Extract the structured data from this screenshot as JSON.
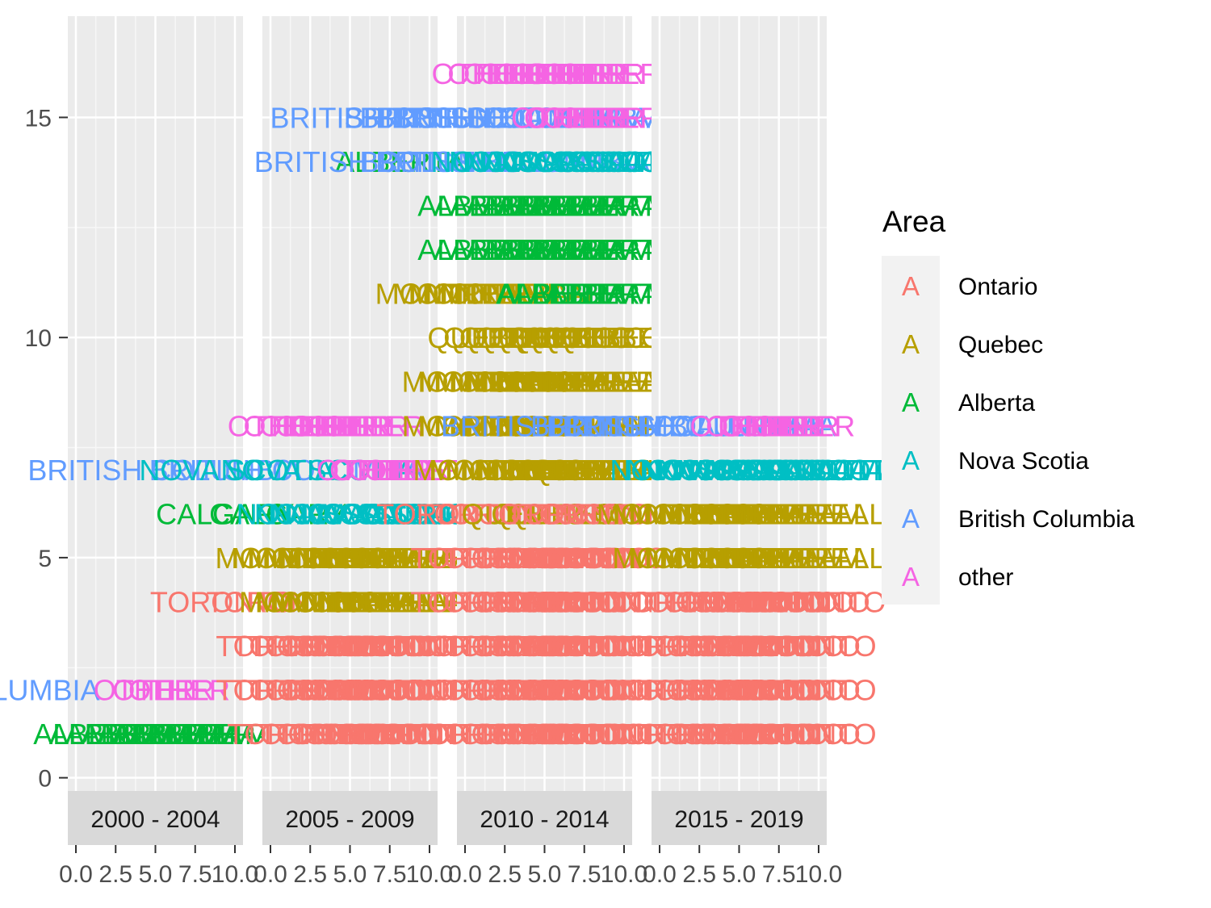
{
  "chart_data": {
    "type": "text-stack",
    "facets": [
      {
        "label": "2000 - 2004",
        "stacks": [
          {
            "y": 1,
            "series": "Alberta",
            "text": "ALBERTA",
            "count": 10,
            "x_end": 10.4
          },
          {
            "y": 2,
            "series": "British Columbia",
            "text": "BRITISH COLUMBIA",
            "count": 1,
            "x_end": 1.5
          },
          {
            "y": 2,
            "series": "other",
            "text": "OTHER",
            "count": 3,
            "x_end": 7.5
          }
        ]
      },
      {
        "label": "2005 - 2009",
        "stacks": [
          {
            "y": 1,
            "series": "Ontario",
            "text": "TORONTO",
            "count": 10,
            "x_end": 10.8
          },
          {
            "y": 2,
            "series": "Ontario",
            "text": "TORONTO",
            "count": 10,
            "x_end": 10.1
          },
          {
            "y": 3,
            "series": "Ontario",
            "text": "TORONTO",
            "count": 10,
            "x_end": 10.1
          },
          {
            "y": 4,
            "series": "Ontario",
            "text": "TORONTO",
            "count": 2,
            "x_end": 1.5
          },
          {
            "y": 4,
            "series": "Quebec",
            "text": "MONTREAL",
            "count": 8,
            "x_end": 10.1
          },
          {
            "y": 5,
            "series": "Quebec",
            "text": "MONTREAL",
            "count": 10,
            "x_end": 10.6
          },
          {
            "y": 6,
            "series": "Alberta",
            "text": "CALGARY",
            "count": 2,
            "x_end": 1.5
          },
          {
            "y": 6,
            "series": "Nova Scotia",
            "text": "NOVA SCOTIA",
            "count": 6,
            "x_end": 10.1
          },
          {
            "y": 7,
            "series": "British Columbia",
            "text": "BRITISH COLUMBIA",
            "count": 2,
            "x_end": 2.0
          },
          {
            "y": 7,
            "series": "Nova Scotia",
            "text": "NOVA SCOTIA",
            "count": 2,
            "x_end": 4.0
          },
          {
            "y": 7,
            "series": "other",
            "text": "OTHER",
            "count": 5,
            "x_end": 10.1
          },
          {
            "y": 8,
            "series": "other",
            "text": "OTHER",
            "count": 8,
            "x_end": 7.5
          }
        ]
      },
      {
        "label": "2010 - 2014",
        "stacks": [
          {
            "y": 1,
            "series": "Ontario",
            "text": "TORONTO",
            "count": 10,
            "x_end": 10.1
          },
          {
            "y": 2,
            "series": "Ontario",
            "text": "TORONTO",
            "count": 10,
            "x_end": 10.1
          },
          {
            "y": 3,
            "series": "Ontario",
            "text": "TORONTO",
            "count": 10,
            "x_end": 10.1
          },
          {
            "y": 4,
            "series": "Ontario",
            "text": "TORONTO",
            "count": 10,
            "x_end": 10.1
          },
          {
            "y": 5,
            "series": "Ontario",
            "text": "TORONTO",
            "count": 10,
            "x_end": 10.1
          },
          {
            "y": 6,
            "series": "Ontario",
            "text": "TORONTO",
            "count": 3,
            "x_end": 3.5
          },
          {
            "y": 6,
            "series": "Quebec",
            "text": "QUEBEC",
            "count": 3,
            "x_end": 7.5
          },
          {
            "y": 6,
            "series": "Ontario",
            "text": "TORONTO",
            "count": 4,
            "x_end": 10.1
          },
          {
            "y": 7,
            "series": "Quebec",
            "text": "MONTREAL",
            "count": 10,
            "x_end": 10.8
          },
          {
            "y": 8,
            "series": "Quebec",
            "text": "MONTREAL",
            "count": 10,
            "x_end": 10.1
          },
          {
            "y": 9,
            "series": "Quebec",
            "text": "MONTREAL",
            "count": 10,
            "x_end": 10.1
          },
          {
            "y": 10,
            "series": "Quebec",
            "text": "QUEBEC",
            "count": 10,
            "x_end": 10.5
          },
          {
            "y": 11,
            "series": "Quebec",
            "text": "MONTREAL",
            "count": 5,
            "x_end": 4.5
          },
          {
            "y": 11,
            "series": "Alberta",
            "text": "ALBERTA",
            "count": 5,
            "x_end": 10.1
          },
          {
            "y": 12,
            "series": "Alberta",
            "text": "ALBERTA",
            "count": 10,
            "x_end": 10.1
          },
          {
            "y": 13,
            "series": "Alberta",
            "text": "ALBERTA",
            "count": 10,
            "x_end": 10.1
          },
          {
            "y": 14,
            "series": "Alberta",
            "text": "ALBERTA",
            "count": 1,
            "x_end": 0.0
          },
          {
            "y": 14,
            "series": "British Columbia",
            "text": "BRITISH COLUMBIA",
            "count": 3,
            "x_end": 4.0
          },
          {
            "y": 14,
            "series": "Nova Scotia",
            "text": "NOVA SCOTIA",
            "count": 6,
            "x_end": 10.1
          },
          {
            "y": 15,
            "series": "British Columbia",
            "text": "BRITISH COLUMBIA",
            "count": 5,
            "x_end": 5.0
          },
          {
            "y": 15,
            "series": "other",
            "text": "OTHER",
            "count": 5,
            "x_end": 10.1
          },
          {
            "y": 16,
            "series": "other",
            "text": "OTHER",
            "count": 10,
            "x_end": 10.1
          }
        ]
      },
      {
        "label": "2015 - 2019",
        "stacks": [
          {
            "y": 1,
            "series": "Ontario",
            "text": "TORONTO",
            "count": 10,
            "x_end": 10.1
          },
          {
            "y": 2,
            "series": "Ontario",
            "text": "TORONTO",
            "count": 10,
            "x_end": 10.1
          },
          {
            "y": 3,
            "series": "Ontario",
            "text": "TORONTO",
            "count": 10,
            "x_end": 10.1
          },
          {
            "y": 4,
            "series": "Ontario",
            "text": "TORONTO",
            "count": 10,
            "x_end": 10.7
          },
          {
            "y": 5,
            "series": "Ontario",
            "text": "TORONTO",
            "count": 1,
            "x_end": 0.5
          },
          {
            "y": 5,
            "series": "Quebec",
            "text": "MONTREAL",
            "count": 9,
            "x_end": 10.1
          },
          {
            "y": 6,
            "series": "Quebec",
            "text": "MONTREAL",
            "count": 10,
            "x_end": 10.1
          },
          {
            "y": 7,
            "series": "Quebec",
            "text": "QUEBEC",
            "count": 1,
            "x_end": -0.4
          },
          {
            "y": 7,
            "series": "Nova Scotia",
            "text": "NOVA SCOTIA",
            "count": 9,
            "x_end": 11.0
          },
          {
            "y": 8,
            "series": "British Columbia",
            "text": "BRITISH COLUMBIA",
            "count": 4,
            "x_end": 3.5
          },
          {
            "y": 8,
            "series": "other",
            "text": "OTHER",
            "count": 6,
            "x_end": 10.1
          }
        ]
      }
    ],
    "x_ticks": [
      "0.0",
      "2.5",
      "5.0",
      "7.5",
      "10.0"
    ],
    "x_ticks_drawn": [
      "0.0",
      "2.5",
      "5.0",
      "7.5",
      "10.0"
    ],
    "xlim": [
      -0.5,
      10.5
    ],
    "y_ticks": [
      "0",
      "5",
      "10",
      "15"
    ],
    "y_tick_values": [
      0,
      5,
      10,
      15
    ],
    "ylim": [
      -0.3,
      17.3
    ],
    "grid": true,
    "legend": {
      "title": "Area",
      "placement": "right",
      "entries": [
        {
          "label": "Ontario",
          "glyph": "A",
          "color": "#F8766D"
        },
        {
          "label": "Quebec",
          "glyph": "A",
          "color": "#B79F00"
        },
        {
          "label": "Alberta",
          "glyph": "A",
          "color": "#00BA38"
        },
        {
          "label": "Nova Scotia",
          "glyph": "A",
          "color": "#00BFC4"
        },
        {
          "label": "British Columbia",
          "glyph": "A",
          "color": "#619CFF"
        },
        {
          "label": "other",
          "glyph": "A",
          "color": "#F564E3"
        }
      ]
    }
  }
}
